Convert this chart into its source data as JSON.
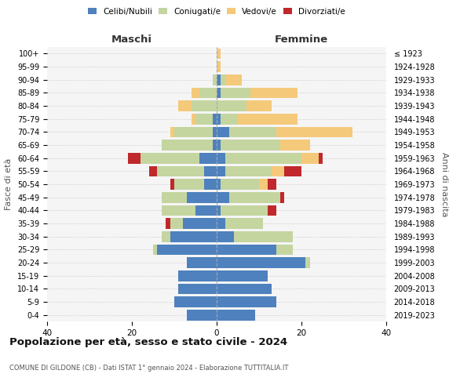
{
  "age_groups": [
    "0-4",
    "5-9",
    "10-14",
    "15-19",
    "20-24",
    "25-29",
    "30-34",
    "35-39",
    "40-44",
    "45-49",
    "50-54",
    "55-59",
    "60-64",
    "65-69",
    "70-74",
    "75-79",
    "80-84",
    "85-89",
    "90-94",
    "95-99",
    "100+"
  ],
  "birth_years": [
    "2019-2023",
    "2014-2018",
    "2009-2013",
    "2004-2008",
    "1999-2003",
    "1994-1998",
    "1989-1993",
    "1984-1988",
    "1979-1983",
    "1974-1978",
    "1969-1973",
    "1964-1968",
    "1959-1963",
    "1954-1958",
    "1949-1953",
    "1944-1948",
    "1939-1943",
    "1934-1938",
    "1929-1933",
    "1924-1928",
    "≤ 1923"
  ],
  "colors": {
    "celibi": "#4e81bd",
    "coniugati": "#c4d5a0",
    "vedovi": "#f5c97a",
    "divorziati": "#c0282c"
  },
  "males": {
    "celibi": [
      7,
      10,
      9,
      9,
      7,
      14,
      11,
      8,
      5,
      7,
      3,
      3,
      4,
      1,
      1,
      1,
      0,
      0,
      0,
      0,
      0
    ],
    "coniugati": [
      0,
      0,
      0,
      0,
      0,
      1,
      2,
      3,
      8,
      6,
      7,
      11,
      14,
      12,
      9,
      4,
      6,
      4,
      1,
      0,
      0
    ],
    "vedovi": [
      0,
      0,
      0,
      0,
      0,
      0,
      0,
      0,
      0,
      0,
      0,
      0,
      0,
      0,
      1,
      1,
      3,
      2,
      0,
      0,
      0
    ],
    "divorziati": [
      0,
      0,
      0,
      0,
      0,
      0,
      0,
      1,
      0,
      0,
      1,
      2,
      3,
      0,
      0,
      0,
      0,
      0,
      0,
      0,
      0
    ]
  },
  "females": {
    "celibi": [
      9,
      14,
      13,
      12,
      21,
      14,
      4,
      2,
      1,
      3,
      1,
      2,
      2,
      1,
      3,
      1,
      0,
      1,
      1,
      0,
      0
    ],
    "coniugati": [
      0,
      0,
      0,
      0,
      1,
      4,
      14,
      9,
      11,
      12,
      9,
      11,
      18,
      14,
      11,
      4,
      7,
      7,
      1,
      0,
      0
    ],
    "vedovi": [
      0,
      0,
      0,
      0,
      0,
      0,
      0,
      0,
      0,
      0,
      2,
      3,
      4,
      7,
      18,
      14,
      6,
      11,
      4,
      1,
      1
    ],
    "divorziati": [
      0,
      0,
      0,
      0,
      0,
      0,
      0,
      0,
      2,
      1,
      2,
      4,
      1,
      0,
      0,
      0,
      0,
      0,
      0,
      0,
      0
    ]
  },
  "xlim": 40,
  "title": "Popolazione per età, sesso e stato civile - 2024",
  "subtitle": "COMUNE DI GILDONE (CB) - Dati ISTAT 1° gennaio 2024 - Elaborazione TUTTITALIA.IT",
  "xlabel_left": "Maschi",
  "xlabel_right": "Femmine",
  "ylabel_left": "Fasce di età",
  "ylabel_right": "Anni di nascita",
  "legend_labels": [
    "Celibi/Nubili",
    "Coniugati/e",
    "Vedovi/e",
    "Divorziati/e"
  ]
}
